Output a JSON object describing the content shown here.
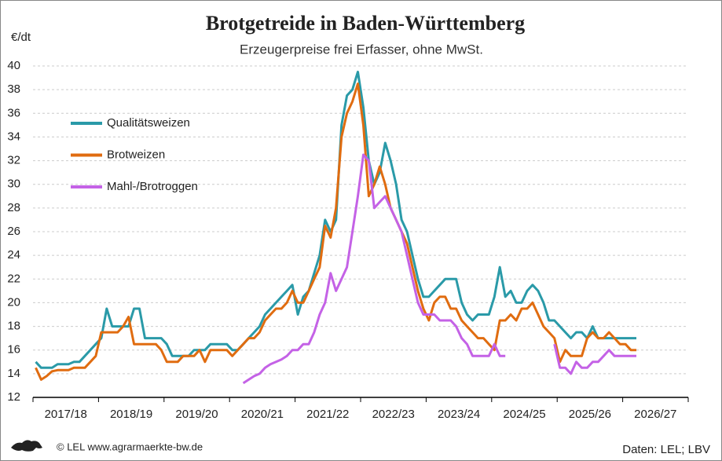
{
  "chart_data": {
    "type": "line",
    "title": "Brotgetreide in Baden-Württemberg",
    "subtitle": "Erzeugerpreise frei Erfasser, ohne MwSt.",
    "y_label": "€/dt",
    "credit": "© LEL www.agrarmaerkte-bw.de",
    "source": "Daten: LEL; LBV",
    "categories": [
      null,
      null,
      null,
      null,
      null,
      null,
      "2017/18",
      null,
      null,
      null,
      null,
      null,
      null,
      null,
      null,
      null,
      null,
      null,
      "2018/19",
      null,
      null,
      null,
      null,
      null,
      null,
      null,
      null,
      null,
      null,
      null,
      "2019/20",
      null,
      null,
      null,
      null,
      null,
      null,
      null,
      null,
      null,
      null,
      null,
      "2020/21",
      null,
      null,
      null,
      null,
      null,
      null,
      null,
      null,
      null,
      null,
      null,
      "2021/22",
      null,
      null,
      null,
      null,
      null,
      null,
      null,
      null,
      null,
      null,
      null,
      "2022/23",
      null,
      null,
      null,
      null,
      null,
      null,
      null,
      null,
      null,
      null,
      null,
      "2023/24",
      null,
      null,
      null,
      null,
      null,
      null,
      null,
      null,
      null,
      null,
      null,
      "2024/25",
      null,
      null,
      null,
      null,
      null,
      null,
      null,
      null,
      null,
      null,
      null,
      "2025/26",
      null,
      null,
      null,
      null,
      null,
      null,
      null,
      null,
      null,
      null,
      null,
      "2026/27",
      null,
      null,
      null,
      null,
      null
    ],
    "series": [
      {
        "name": "Qualitätsweizen",
        "color": "#2a9aa8",
        "values": [
          15,
          14.5,
          14.5,
          14.5,
          14.8,
          14.8,
          14.8,
          15,
          15,
          15.5,
          16,
          16.5,
          17,
          19.5,
          18,
          18,
          18,
          18,
          19.5,
          19.5,
          17,
          17,
          17,
          17,
          16.5,
          15.5,
          15.5,
          15.5,
          15.5,
          16,
          16,
          16,
          16.5,
          16.5,
          16.5,
          16.5,
          16,
          16,
          16.5,
          17,
          17.5,
          18,
          19,
          19.5,
          20,
          20.5,
          21,
          21.5,
          19,
          20.5,
          21,
          22.5,
          24,
          27,
          26,
          27,
          35,
          37.5,
          38,
          39.5,
          36.5,
          32,
          30,
          31,
          33.5,
          32,
          30,
          27,
          26,
          24,
          22,
          20.5,
          20.5,
          21,
          21.5,
          22,
          22,
          22,
          20,
          19,
          18.5,
          19,
          19,
          19,
          20.5,
          23,
          20.5,
          21,
          20,
          20,
          21,
          21.5,
          21,
          20,
          18.5,
          18.5,
          18,
          17.5,
          17,
          17.5,
          17.5,
          17,
          18,
          17,
          17,
          17,
          17,
          17,
          17,
          17,
          17,
          null,
          null,
          null,
          null,
          null,
          null,
          null,
          null,
          null
        ]
      },
      {
        "name": "Brotweizen",
        "color": "#e06c10",
        "values": [
          14.5,
          13.5,
          13.8,
          14.2,
          14.3,
          14.3,
          14.3,
          14.5,
          14.5,
          14.5,
          15,
          15.5,
          17.5,
          17.5,
          17.5,
          17.5,
          18,
          18.8,
          16.5,
          16.5,
          16.5,
          16.5,
          16.5,
          16,
          15,
          15,
          15,
          15.5,
          15.5,
          15.5,
          16,
          15,
          16,
          16,
          16,
          16,
          15.5,
          16,
          16.5,
          17,
          17,
          17.5,
          18.5,
          19,
          19.5,
          19.5,
          20,
          21,
          20,
          20,
          21,
          22,
          23,
          26.5,
          25.5,
          28,
          34,
          36,
          37,
          38.5,
          35,
          29,
          30,
          31.5,
          30,
          28,
          27,
          26,
          25,
          23,
          21,
          19.5,
          18.5,
          20,
          20.5,
          20.5,
          19.5,
          19.5,
          18.5,
          18,
          17.5,
          17,
          17,
          16.5,
          16,
          18.5,
          18.5,
          19,
          18.5,
          19.5,
          19.5,
          20,
          19,
          18,
          17.5,
          17,
          15,
          16,
          15.5,
          15.5,
          15.5,
          17,
          17.5,
          17,
          17,
          17.5,
          17,
          16.5,
          16.5,
          16,
          16,
          null,
          null,
          null,
          null,
          null,
          null,
          null,
          null,
          null
        ]
      },
      {
        "name": "Mahl-/Brotroggen",
        "color": "#c462e6",
        "values": [
          null,
          null,
          null,
          null,
          null,
          null,
          null,
          null,
          null,
          null,
          null,
          null,
          null,
          null,
          null,
          null,
          null,
          null,
          null,
          null,
          null,
          null,
          null,
          null,
          null,
          null,
          null,
          null,
          null,
          null,
          null,
          null,
          null,
          null,
          null,
          null,
          null,
          null,
          13.2,
          13.5,
          13.8,
          14,
          14.5,
          14.8,
          15,
          15.2,
          15.5,
          16,
          16,
          16.5,
          16.5,
          17.5,
          19,
          20,
          22.5,
          21,
          22,
          23,
          26,
          29,
          32.5,
          32,
          28,
          28.5,
          29,
          28,
          27,
          26,
          24,
          22,
          20,
          19,
          19,
          19,
          18.5,
          18.5,
          18.5,
          18,
          17,
          16.5,
          15.5,
          15.5,
          15.5,
          15.5,
          16.5,
          15.5,
          15.5,
          null,
          null,
          null,
          null,
          null,
          null,
          null,
          null,
          16.5,
          14.5,
          14.5,
          14,
          15,
          14.5,
          14.5,
          15,
          15,
          15.5,
          16,
          15.5,
          15.5,
          15.5,
          15.5,
          15.5,
          null,
          null,
          null,
          null,
          null,
          null,
          null,
          null,
          null
        ]
      }
    ],
    "ylim": [
      12,
      40
    ],
    "yticks": [
      12,
      14,
      16,
      18,
      20,
      22,
      24,
      26,
      28,
      30,
      32,
      34,
      36,
      38,
      40
    ],
    "grid": true,
    "legend": "upper left"
  }
}
